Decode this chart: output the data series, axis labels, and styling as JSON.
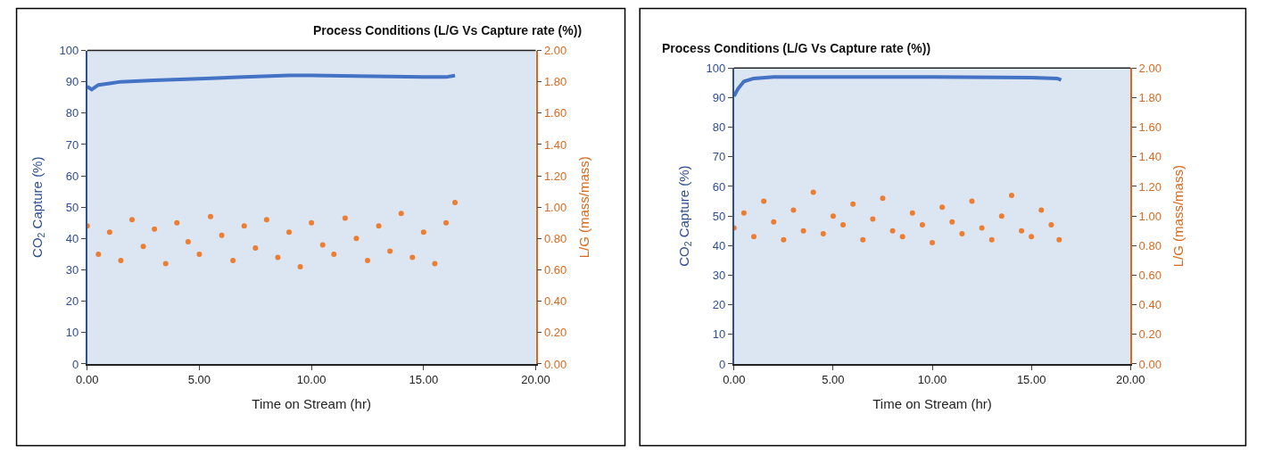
{
  "chart_data": [
    {
      "type": "line",
      "title": "Process Conditions (L/G Vs Capture rate (%))",
      "xlabel": "Time on Stream (hr)",
      "ylabel": "CO$_{2}$ Capture (%)",
      "y2label": "L/G (mass/mass)",
      "xlim": [
        0,
        20
      ],
      "xticks": [
        {
          "value": 0,
          "label": "0.00"
        },
        {
          "value": 5,
          "label": "5.00"
        },
        {
          "value": 10,
          "label": "10.00"
        },
        {
          "value": 15,
          "label": "15.00"
        },
        {
          "value": 20,
          "label": "20.00"
        }
      ],
      "ylim": [
        0,
        100
      ],
      "yticks": [
        0,
        10,
        20,
        30,
        40,
        50,
        60,
        70,
        80,
        90,
        100
      ],
      "y2lim": [
        0,
        2
      ],
      "y2ticks": [
        {
          "value": 0,
          "label": "0.00"
        },
        {
          "value": 0.2,
          "label": "0.20"
        },
        {
          "value": 0.4,
          "label": "0.40"
        },
        {
          "value": 0.6,
          "label": "0.60"
        },
        {
          "value": 0.8,
          "label": "0.80"
        },
        {
          "value": 1.0,
          "label": "1.00"
        },
        {
          "value": 1.2,
          "label": "1.20"
        },
        {
          "value": 1.4,
          "label": "1.40"
        },
        {
          "value": 1.6,
          "label": "1.60"
        },
        {
          "value": 1.8,
          "label": "1.80"
        },
        {
          "value": 2.0,
          "label": "2.00"
        }
      ],
      "grid": false,
      "series": [
        {
          "color": "#4472c4",
          "x": [
            0,
            0.1,
            0.2,
            0.5,
            1.0,
            1.5,
            3,
            5,
            7,
            9,
            10,
            12,
            15,
            16.0,
            16.4
          ],
          "values": [
            88.5,
            88,
            87.5,
            89,
            89.5,
            90,
            90.5,
            91,
            91.5,
            92,
            92,
            91.8,
            91.5,
            91.5,
            92
          ]
        },
        {
          "type": "scatter",
          "axis": "y2",
          "color": "#ed7d31",
          "x": [
            0,
            0.5,
            1,
            1.5,
            2,
            2.5,
            3,
            3.5,
            4,
            4.5,
            5,
            5.5,
            6,
            6.5,
            7,
            7.5,
            8,
            8.5,
            9,
            9.5,
            10,
            10.5,
            11,
            11.5,
            12,
            12.5,
            13,
            13.5,
            14,
            14.5,
            15,
            15.5,
            16,
            16.4
          ],
          "values": [
            0.88,
            0.7,
            0.84,
            0.66,
            0.92,
            0.75,
            0.86,
            0.64,
            0.9,
            0.78,
            0.7,
            0.94,
            0.82,
            0.66,
            0.88,
            0.74,
            0.92,
            0.68,
            0.84,
            0.62,
            0.9,
            0.76,
            0.7,
            0.93,
            0.8,
            0.66,
            0.88,
            0.72,
            0.96,
            0.68,
            0.84,
            0.64,
            0.9,
            1.03
          ]
        }
      ]
    },
    {
      "type": "line",
      "title": "Process Conditions (L/G Vs Capture rate (%))",
      "xlabel": "Time on Stream (hr)",
      "ylabel": "CO$_{2}$ Capture (%)",
      "y2label": "L/G (mass/mass)",
      "xlim": [
        0,
        20
      ],
      "xticks": [
        {
          "value": 0,
          "label": "0.00"
        },
        {
          "value": 5,
          "label": "5.00"
        },
        {
          "value": 10,
          "label": "10.00"
        },
        {
          "value": 15,
          "label": "15.00"
        },
        {
          "value": 20,
          "label": "20.00"
        }
      ],
      "ylim": [
        0,
        100
      ],
      "yticks": [
        0,
        10,
        20,
        30,
        40,
        50,
        60,
        70,
        80,
        90,
        100
      ],
      "y2lim": [
        0,
        2
      ],
      "y2ticks": [
        {
          "value": 0,
          "label": "0.00"
        },
        {
          "value": 0.2,
          "label": "0.20"
        },
        {
          "value": 0.4,
          "label": "0.40"
        },
        {
          "value": 0.6,
          "label": "0.60"
        },
        {
          "value": 0.8,
          "label": "0.80"
        },
        {
          "value": 1.0,
          "label": "1.00"
        },
        {
          "value": 1.2,
          "label": "1.20"
        },
        {
          "value": 1.4,
          "label": "1.40"
        },
        {
          "value": 1.6,
          "label": "1.60"
        },
        {
          "value": 1.8,
          "label": "1.80"
        },
        {
          "value": 2.0,
          "label": "2.00"
        }
      ],
      "grid": false,
      "series": [
        {
          "color": "#4472c4",
          "x": [
            0,
            0.2,
            0.5,
            1,
            2,
            5,
            10,
            15,
            16.3,
            16.5
          ],
          "values": [
            90.5,
            93,
            95.5,
            96.5,
            97,
            97,
            97,
            96.8,
            96.5,
            96
          ]
        },
        {
          "type": "scatter",
          "axis": "y2",
          "color": "#ed7d31",
          "x": [
            0,
            0.5,
            1,
            1.5,
            2,
            2.5,
            3,
            3.5,
            4,
            4.5,
            5,
            5.5,
            6,
            6.5,
            7,
            7.5,
            8,
            8.5,
            9,
            9.5,
            10,
            10.5,
            11,
            11.5,
            12,
            12.5,
            13,
            13.5,
            14,
            14.5,
            15,
            15.5,
            16,
            16.4
          ],
          "values": [
            0.92,
            1.02,
            0.86,
            1.1,
            0.96,
            0.84,
            1.04,
            0.9,
            1.16,
            0.88,
            1.0,
            0.94,
            1.08,
            0.84,
            0.98,
            1.12,
            0.9,
            0.86,
            1.02,
            0.94,
            0.82,
            1.06,
            0.96,
            0.88,
            1.1,
            0.92,
            0.84,
            1.0,
            1.14,
            0.9,
            0.86,
            1.04,
            0.94,
            0.84
          ]
        }
      ]
    }
  ]
}
